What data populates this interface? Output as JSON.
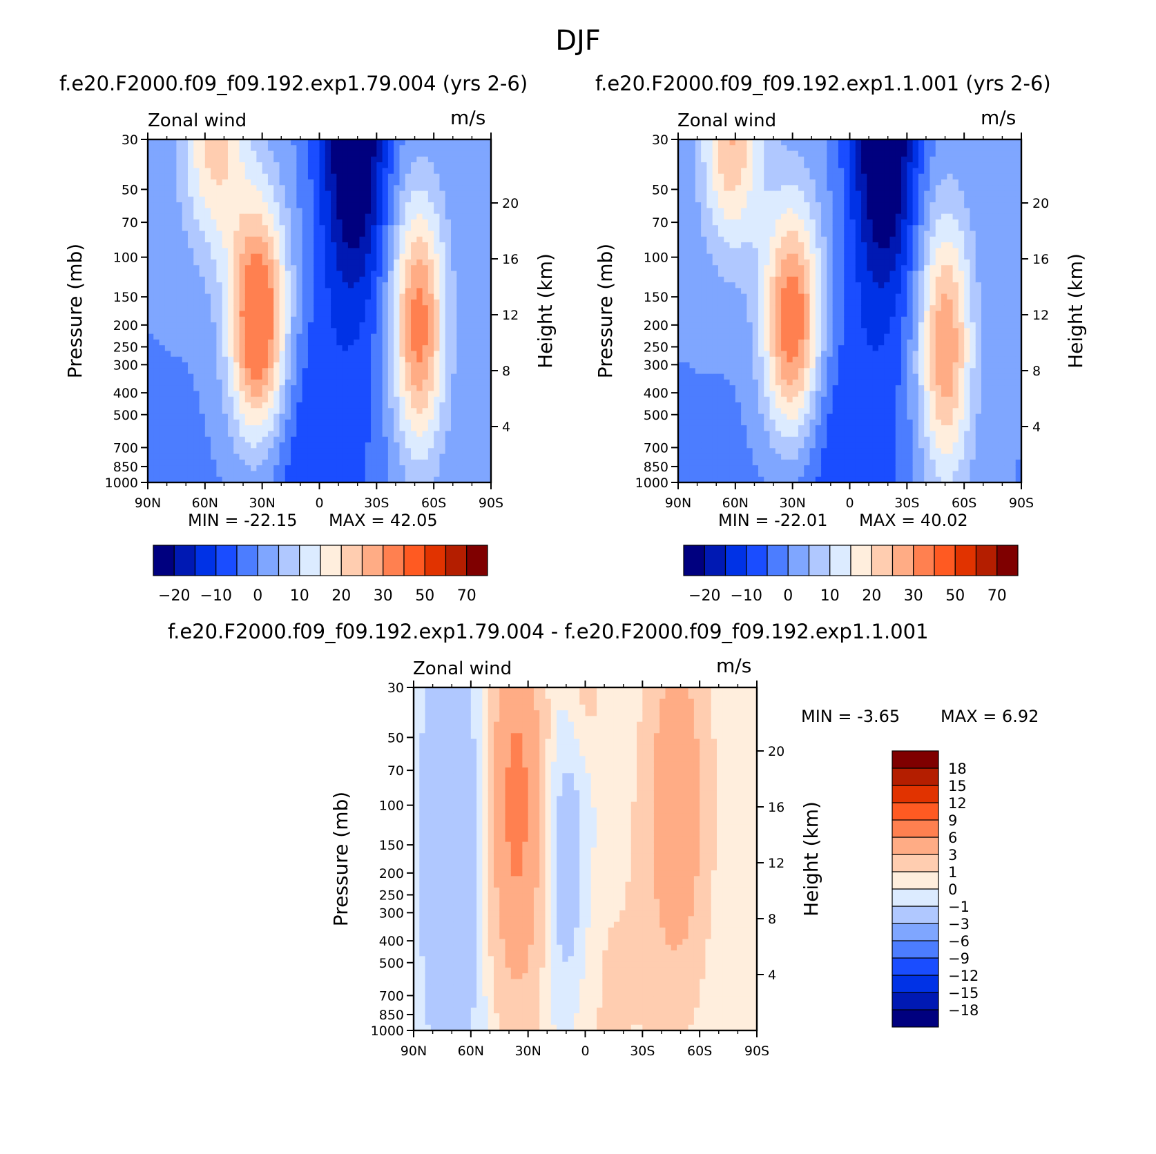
{
  "page": {
    "title": "DJF"
  },
  "colors": {
    "abs_palette": [
      "#00007f",
      "#0019b3",
      "#0032e6",
      "#1a4dff",
      "#4c7dff",
      "#7fa6ff",
      "#b0c8ff",
      "#dcebff",
      "#ffeedd",
      "#ffcdb0",
      "#ffac85",
      "#ff8050",
      "#ff5a22",
      "#e13300",
      "#b41e00",
      "#7f0000"
    ],
    "diff_palette": [
      "#00007f",
      "#0019b3",
      "#0032e6",
      "#1a4dff",
      "#4c7dff",
      "#7fa6ff",
      "#b0c8ff",
      "#dcebff",
      "#ffeedd",
      "#ffcdb0",
      "#ffac85",
      "#ff8050",
      "#ff5a22",
      "#e13300",
      "#b41e00",
      "#7f0000"
    ]
  },
  "chart_data": [
    {
      "type": "heatmap",
      "title": "f.e20.F2000.f09_f09.192.exp1.79.004 (yrs 2-6)",
      "left_label": "Zonal wind",
      "right_label": "m/s",
      "ylabel": "Pressure (mb)",
      "y2label": "Height (km)",
      "x_ticks": [
        "90N",
        "60N",
        "30N",
        "0",
        "30S",
        "60S",
        "90S"
      ],
      "x_values": [
        90,
        60,
        30,
        0,
        -30,
        -60,
        -90
      ],
      "y_ticks": [
        "30",
        "50",
        "70",
        "100",
        "150",
        "200",
        "250",
        "300",
        "400",
        "500",
        "700",
        "850",
        "1000"
      ],
      "y_values": [
        30,
        50,
        70,
        100,
        150,
        200,
        250,
        300,
        400,
        500,
        700,
        850,
        1000
      ],
      "y2_ticks": [
        "20",
        "16",
        "12",
        "8",
        "4"
      ],
      "y2_values": [
        20,
        16,
        12,
        8,
        4
      ],
      "min_text": "MIN =  -22.15",
      "max_text": "MAX =   42.05",
      "min": -22.15,
      "max": 42.05,
      "colorbar_labels": [
        "-20",
        "-10",
        "0",
        "10",
        "20",
        "30",
        "50",
        "70"
      ],
      "levels": [
        -25,
        -20,
        -15,
        -10,
        -5,
        0,
        5,
        10,
        15,
        20,
        25,
        30,
        40,
        50,
        60,
        70
      ],
      "features": [
        {
          "lat": 55,
          "p": 30,
          "amp": 22,
          "wlat": 12,
          "wlog": 0.35
        },
        {
          "lat": 32,
          "p": 200,
          "amp": 42,
          "wlat": 11,
          "wlog": 0.38
        },
        {
          "lat": -52,
          "p": 200,
          "amp": 33,
          "wlat": 10,
          "wlog": 0.4
        },
        {
          "lat": -18,
          "p": 30,
          "amp": -30,
          "wlat": 12,
          "wlog": 0.5
        },
        {
          "lat": 5,
          "p": 700,
          "amp": -10,
          "wlat": 25,
          "wlog": 0.5
        }
      ]
    },
    {
      "type": "heatmap",
      "title": "f.e20.F2000.f09_f09.192.exp1.1.001 (yrs 2-6)",
      "left_label": "Zonal wind",
      "right_label": "m/s",
      "ylabel": "Pressure (mb)",
      "y2label": "Height (km)",
      "x_ticks": [
        "90N",
        "60N",
        "30N",
        "0",
        "30S",
        "60S",
        "90S"
      ],
      "x_values": [
        90,
        60,
        30,
        0,
        -30,
        -60,
        -90
      ],
      "y_ticks": [
        "30",
        "50",
        "70",
        "100",
        "150",
        "200",
        "250",
        "300",
        "400",
        "500",
        "700",
        "850",
        "1000"
      ],
      "y_values": [
        30,
        50,
        70,
        100,
        150,
        200,
        250,
        300,
        400,
        500,
        700,
        850,
        1000
      ],
      "y2_ticks": [
        "20",
        "16",
        "12",
        "8",
        "4"
      ],
      "y2_values": [
        20,
        16,
        12,
        8,
        4
      ],
      "min_text": "MIN =  -22.01",
      "max_text": "MAX =   40.02",
      "min": -22.01,
      "max": 40.02,
      "colorbar_labels": [
        "-20",
        "-10",
        "0",
        "10",
        "20",
        "30",
        "50",
        "70"
      ],
      "levels": [
        -25,
        -20,
        -15,
        -10,
        -5,
        0,
        5,
        10,
        15,
        20,
        25,
        30,
        40,
        50,
        60,
        70
      ],
      "features": [
        {
          "lat": 62,
          "p": 30,
          "amp": 25,
          "wlat": 11,
          "wlog": 0.35
        },
        {
          "lat": 30,
          "p": 200,
          "amp": 38,
          "wlat": 11,
          "wlog": 0.38
        },
        {
          "lat": -50,
          "p": 250,
          "amp": 30,
          "wlat": 10,
          "wlog": 0.42
        },
        {
          "lat": -18,
          "p": 30,
          "amp": -30,
          "wlat": 12,
          "wlog": 0.5
        },
        {
          "lat": 5,
          "p": 700,
          "amp": -10,
          "wlat": 25,
          "wlog": 0.5
        }
      ]
    },
    {
      "type": "heatmap",
      "title": "f.e20.F2000.f09_f09.192.exp1.79.004 - f.e20.F2000.f09_f09.192.exp1.1.001",
      "left_label": "Zonal wind",
      "right_label": "m/s",
      "ylabel": "Pressure (mb)",
      "y2label": "Height (km)",
      "x_ticks": [
        "90N",
        "60N",
        "30N",
        "0",
        "30S",
        "60S",
        "90S"
      ],
      "x_values": [
        90,
        60,
        30,
        0,
        -30,
        -60,
        -90
      ],
      "y_ticks": [
        "30",
        "50",
        "70",
        "100",
        "150",
        "200",
        "250",
        "300",
        "400",
        "500",
        "700",
        "850",
        "1000"
      ],
      "y_values": [
        30,
        50,
        70,
        100,
        150,
        200,
        250,
        300,
        400,
        500,
        700,
        850,
        1000
      ],
      "y2_ticks": [
        "20",
        "16",
        "12",
        "8",
        "4"
      ],
      "y2_values": [
        20,
        16,
        12,
        8,
        4
      ],
      "min_text": "MIN =   -3.65",
      "max_text": "MAX =    6.92",
      "min": -3.65,
      "max": 6.92,
      "colorbar_labels": [
        "18",
        "15",
        "12",
        "9",
        "6",
        "3",
        "1",
        "0",
        "-1",
        "-3",
        "-6",
        "-9",
        "-12",
        "-15",
        "-18"
      ],
      "levels": [
        -21,
        -18,
        -15,
        -12,
        -9,
        -6,
        -3,
        -1,
        0,
        1,
        3,
        6,
        9,
        12,
        15,
        18
      ],
      "features": [
        {
          "lat": 36,
          "p": 100,
          "amp": 7,
          "wlat": 10,
          "wlog": 0.6
        },
        {
          "lat": -48,
          "p": 100,
          "amp": 5.5,
          "wlat": 11,
          "wlog": 0.55
        },
        {
          "lat": 70,
          "p": 150,
          "amp": -2.8,
          "wlat": 12,
          "wlog": 0.8
        },
        {
          "lat": 10,
          "p": 200,
          "amp": -2.5,
          "wlat": 9,
          "wlog": 0.5
        },
        {
          "lat": -10,
          "p": 700,
          "amp": 1.2,
          "wlat": 20,
          "wlog": 0.6
        },
        {
          "lat": 0,
          "p": 30,
          "amp": 1.5,
          "wlat": 8,
          "wlog": 0.25
        }
      ]
    }
  ]
}
